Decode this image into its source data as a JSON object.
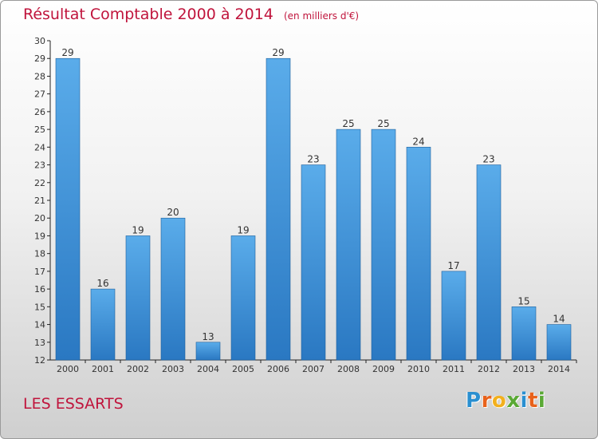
{
  "header": {
    "title": "Résultat Comptable 2000 à 2014",
    "unit": "(en milliers d'€)"
  },
  "footer": {
    "commune": "LES ESSARTS",
    "logo": "Proxiti"
  },
  "colors": {
    "title": "#c0143c",
    "bar_light": "#5aacea",
    "bar_dark": "#2a78c2"
  },
  "chart_data": {
    "type": "bar",
    "title": "Résultat Comptable 2000 à 2014",
    "subtitle": "(en milliers d'€)",
    "xlabel": "",
    "ylabel": "",
    "categories": [
      "2000",
      "2001",
      "2002",
      "2003",
      "2004",
      "2005",
      "2006",
      "2007",
      "2008",
      "2009",
      "2010",
      "2011",
      "2012",
      "2013",
      "2014"
    ],
    "values": [
      29,
      16,
      19,
      20,
      13,
      19,
      29,
      23,
      25,
      25,
      24,
      17,
      23,
      15,
      14
    ],
    "ylim": [
      12,
      30
    ],
    "yticks": [
      12,
      13,
      14,
      15,
      16,
      17,
      18,
      19,
      20,
      21,
      22,
      23,
      24,
      25,
      26,
      27,
      28,
      29,
      30
    ],
    "grid": false,
    "data_labels": true
  }
}
